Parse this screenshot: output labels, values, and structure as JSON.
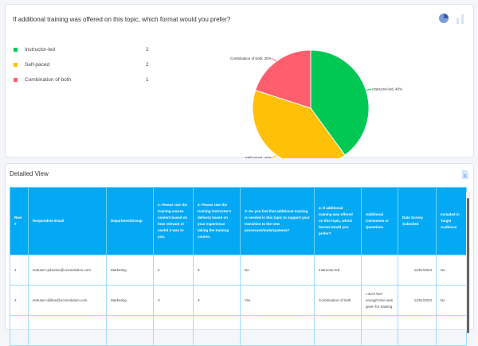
{
  "chart_card": {
    "title": "If additional training was offered on this topic, which format would you prefer?",
    "legend": [
      {
        "label": "Instructor-led",
        "count": "2",
        "color": "#00c853"
      },
      {
        "label": "Self-paced",
        "count": "2",
        "color": "#ffc107"
      },
      {
        "label": "Combination of both",
        "count": "1",
        "color": "#ff5f6d"
      }
    ]
  },
  "chart_data": {
    "type": "pie",
    "categories": [
      "Instructor-led",
      "Self-paced",
      "Combination of both"
    ],
    "values": [
      40,
      40,
      20
    ],
    "data_labels": [
      "Instructor-led, 40%",
      "Self-paced, 40%",
      "Combination of both, 20%"
    ],
    "colors": [
      "#00c853",
      "#ffc107",
      "#ff5f6d"
    ]
  },
  "detail": {
    "title": "Detailed View",
    "columns": [
      "Row #",
      "Respondent Email",
      "Department/Group",
      "1: Please rate the training course content based on how relevant or useful it was to you.",
      "2: Please rate the training instructor's delivery based on your experience taking the training course.",
      "3: Do you feel that additional training is needed in this topic to support your transition to the new processes/tools/systems?",
      "4: If additional training was offered on this topic, which format would you prefer?",
      "Additional Comments or Questions",
      "Date Survey Submited",
      "Included in Target Audience"
    ],
    "rows": [
      [
        "1",
        "testuser+johndoe@ocmsolution.com",
        "Marketing",
        "4",
        "5",
        "No",
        "Instructor-led",
        "",
        "11/01/2023",
        "No"
      ],
      [
        "2",
        "testuser+jilldoe@ocmsolution.com",
        "Marketing",
        "3",
        "3",
        "Yes",
        "Combination of both",
        "I don't feel enough time was given for training.",
        "11/01/2023",
        "No"
      ]
    ]
  }
}
